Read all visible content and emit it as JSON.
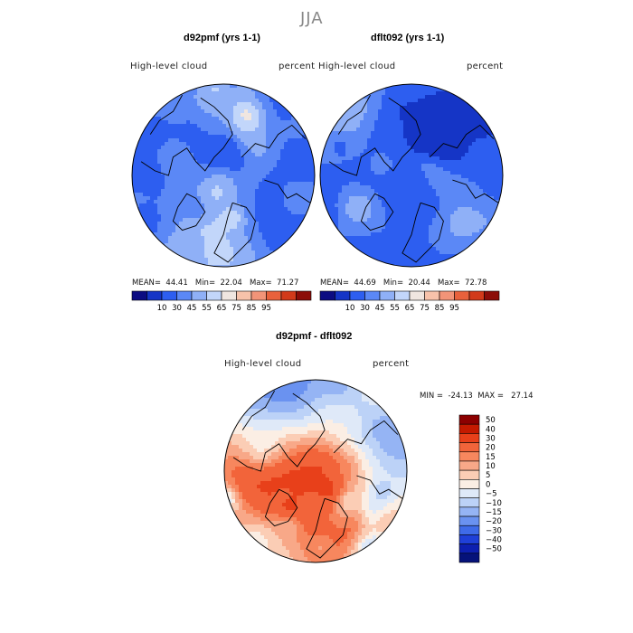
{
  "figure_title": "JJA",
  "panels": [
    {
      "title": "d92pmf (yrs 1-1)",
      "variable": "High-level cloud",
      "units": "percent",
      "stats": {
        "mean_label": "MEAN=",
        "mean": "44.41",
        "min_label": "Min=",
        "min": "22.04",
        "max_label": "Max=",
        "max": "71.27"
      },
      "colorbar_ticks": [
        "10",
        "30",
        "45",
        "55",
        "65",
        "75",
        "85",
        "95"
      ]
    },
    {
      "title": "dflt092 (yrs 1-1)",
      "variable": "High-level cloud",
      "units": "percent",
      "stats": {
        "mean_label": "MEAN=",
        "mean": "44.69",
        "min_label": "Min=",
        "min": "20.44",
        "max_label": "Max=",
        "max": "72.78"
      },
      "colorbar_ticks": [
        "10",
        "30",
        "45",
        "55",
        "65",
        "75",
        "85",
        "95"
      ]
    },
    {
      "title": "d92pmf - dflt092",
      "variable": "High-level cloud",
      "units": "percent",
      "stats": {
        "min_label": "MIN =",
        "min": "-24.13",
        "max_label": "MAX =",
        "max": "27.14"
      },
      "colorbar_ticks": [
        "50",
        "40",
        "30",
        "20",
        "15",
        "10",
        "5",
        "0",
        "−5",
        "−10",
        "−15",
        "−20",
        "−30",
        "−40",
        "−50"
      ]
    }
  ],
  "chart_data": [
    {
      "type": "heatmap",
      "projection": "north polar stereographic",
      "title": "d92pmf (yrs 1-1)",
      "subtitle": "High-level cloud",
      "units": "percent",
      "mean": 44.41,
      "min": 22.04,
      "max": 71.27,
      "contour_levels": [
        10,
        30,
        45,
        55,
        65,
        75,
        85,
        95
      ],
      "colors": [
        "#0c0c82",
        "#1535c6",
        "#2d5ef0",
        "#5b88f6",
        "#8fb0f7",
        "#c2d6fa",
        "#f0e6e0",
        "#f7c2aa",
        "#f29478",
        "#e8613c",
        "#d23a1a",
        "#8c0d08"
      ]
    },
    {
      "type": "heatmap",
      "projection": "north polar stereographic",
      "title": "dflt092 (yrs 1-1)",
      "subtitle": "High-level cloud",
      "units": "percent",
      "mean": 44.69,
      "min": 20.44,
      "max": 72.78,
      "contour_levels": [
        10,
        30,
        45,
        55,
        65,
        75,
        85,
        95
      ],
      "colors": [
        "#0c0c82",
        "#1535c6",
        "#2d5ef0",
        "#5b88f6",
        "#8fb0f7",
        "#c2d6fa",
        "#f0e6e0",
        "#f7c2aa",
        "#f29478",
        "#e8613c",
        "#d23a1a",
        "#8c0d08"
      ]
    },
    {
      "type": "heatmap",
      "projection": "north polar stereographic",
      "title": "d92pmf - dflt092",
      "subtitle": "High-level cloud",
      "units": "percent",
      "min": -24.13,
      "max": 27.14,
      "contour_levels": [
        -50,
        -40,
        -30,
        -20,
        -15,
        -10,
        -5,
        0,
        5,
        10,
        15,
        20,
        30,
        40,
        50
      ],
      "colors": [
        "#8c0000",
        "#c41a00",
        "#e8401a",
        "#f2643a",
        "#f7875e",
        "#f8a888",
        "#fbcdb5",
        "#fbeee4",
        "#dfe9f8",
        "#bcd2f7",
        "#95b4f4",
        "#6a92f0",
        "#3f6be8",
        "#1f40d8",
        "#0d1fb0",
        "#05127a"
      ]
    }
  ]
}
